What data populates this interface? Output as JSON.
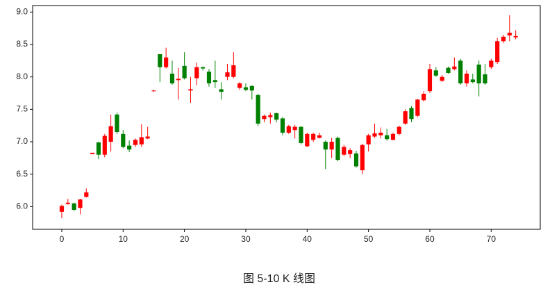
{
  "chart_data": {
    "type": "candlestick",
    "caption": "图 5-10 K 线图",
    "x": [
      0,
      1,
      2,
      3,
      4,
      5,
      6,
      7,
      8,
      9,
      10,
      11,
      12,
      13,
      14,
      15,
      16,
      17,
      18,
      19,
      20,
      21,
      22,
      23,
      24,
      25,
      26,
      27,
      28,
      29,
      30,
      31,
      32,
      33,
      34,
      35,
      36,
      37,
      38,
      39,
      40,
      41,
      42,
      43,
      44,
      45,
      46,
      47,
      48,
      49,
      50,
      51,
      52,
      53,
      54,
      55,
      56,
      57,
      58,
      59,
      60,
      61,
      62,
      63,
      64,
      65,
      66,
      67,
      68,
      69,
      70,
      71,
      72,
      73,
      74
    ],
    "open": [
      5.92,
      6.04,
      6.05,
      5.98,
      6.15,
      6.81,
      6.99,
      6.8,
      7.0,
      7.42,
      7.12,
      6.94,
      6.95,
      6.96,
      7.05,
      7.78,
      8.35,
      8.15,
      8.05,
      7.95,
      8.17,
      7.79,
      7.98,
      8.15,
      8.08,
      7.95,
      7.81,
      8.0,
      8.0,
      7.83,
      7.84,
      7.86,
      7.72,
      7.35,
      7.38,
      7.44,
      7.36,
      7.14,
      7.18,
      7.23,
      6.93,
      7.03,
      7.06,
      7.0,
      6.88,
      7.06,
      6.8,
      6.81,
      6.82,
      6.56,
      6.96,
      7.08,
      7.1,
      7.1,
      7.03,
      7.12,
      7.28,
      7.52,
      7.4,
      7.64,
      7.78,
      8.1,
      7.94,
      8.14,
      8.12,
      8.25,
      7.9,
      7.96,
      8.19,
      8.04,
      8.15,
      8.23,
      8.55,
      8.64,
      8.61
    ],
    "high": [
      6.03,
      6.12,
      6.06,
      6.12,
      6.28,
      6.83,
      7.0,
      7.12,
      7.42,
      7.45,
      7.18,
      7.02,
      7.05,
      7.27,
      7.23,
      7.8,
      8.35,
      8.45,
      8.25,
      8.14,
      8.38,
      8.0,
      8.22,
      8.16,
      8.12,
      8.25,
      7.92,
      8.2,
      8.38,
      7.92,
      7.9,
      7.87,
      7.74,
      7.42,
      7.45,
      7.45,
      7.38,
      7.26,
      7.26,
      7.24,
      7.14,
      7.14,
      7.14,
      7.02,
      7.06,
      7.08,
      6.95,
      6.9,
      6.86,
      6.97,
      7.12,
      7.28,
      7.22,
      7.2,
      7.14,
      7.25,
      7.5,
      7.55,
      7.66,
      7.78,
      8.2,
      8.15,
      8.03,
      8.16,
      8.3,
      8.28,
      8.1,
      8.05,
      8.25,
      8.2,
      8.28,
      8.6,
      8.65,
      8.95,
      8.72
    ],
    "low": [
      5.82,
      6.03,
      5.93,
      5.88,
      6.14,
      6.81,
      6.73,
      6.76,
      6.85,
      7.12,
      6.9,
      6.84,
      6.92,
      6.92,
      7.04,
      7.77,
      7.92,
      8.13,
      7.88,
      7.65,
      7.96,
      7.6,
      7.87,
      8.1,
      7.85,
      7.83,
      7.65,
      7.95,
      7.98,
      7.8,
      7.78,
      7.65,
      7.24,
      7.3,
      7.28,
      7.3,
      7.1,
      7.12,
      7.05,
      6.96,
      6.92,
      7.0,
      7.05,
      6.58,
      6.75,
      6.7,
      6.78,
      6.75,
      6.6,
      6.5,
      6.85,
      7.06,
      7.05,
      7.02,
      7.02,
      7.1,
      7.26,
      7.3,
      7.38,
      7.62,
      7.75,
      8.0,
      7.92,
      8.05,
      8.1,
      7.88,
      7.85,
      7.9,
      7.7,
      7.88,
      8.12,
      8.2,
      8.52,
      8.55,
      8.58
    ],
    "close": [
      6.01,
      6.06,
      5.95,
      6.11,
      6.22,
      6.83,
      6.8,
      7.09,
      7.24,
      7.15,
      6.92,
      6.88,
      7.03,
      7.07,
      7.08,
      7.79,
      8.15,
      8.3,
      7.9,
      7.97,
      7.98,
      7.81,
      8.15,
      8.13,
      7.9,
      7.92,
      7.77,
      8.07,
      8.18,
      7.9,
      7.8,
      7.79,
      7.28,
      7.4,
      7.41,
      7.34,
      7.14,
      7.24,
      7.23,
      6.98,
      7.12,
      7.12,
      7.1,
      6.88,
      7.0,
      6.72,
      6.92,
      6.87,
      6.62,
      6.95,
      7.1,
      7.13,
      7.14,
      7.04,
      7.12,
      7.23,
      7.47,
      7.35,
      7.65,
      7.74,
      8.12,
      8.02,
      8.0,
      8.06,
      8.16,
      7.9,
      8.05,
      7.92,
      7.9,
      7.9,
      8.25,
      8.55,
      8.62,
      8.68,
      8.63
    ],
    "up_color": "#ff0000",
    "down_color": "#008000",
    "xlim": [
      -4.75,
      78.0
    ],
    "ylim": [
      5.65,
      9.1
    ],
    "xticks": [
      0,
      10,
      20,
      30,
      40,
      50,
      60,
      70
    ],
    "yticks": [
      {
        "value": 6,
        "label": "6.0"
      },
      6.5,
      {
        "value": 7,
        "label": "7.0"
      },
      7.5,
      {
        "value": 8,
        "label": "8.0"
      },
      8.5,
      {
        "value": 9,
        "label": "9.0"
      }
    ]
  }
}
